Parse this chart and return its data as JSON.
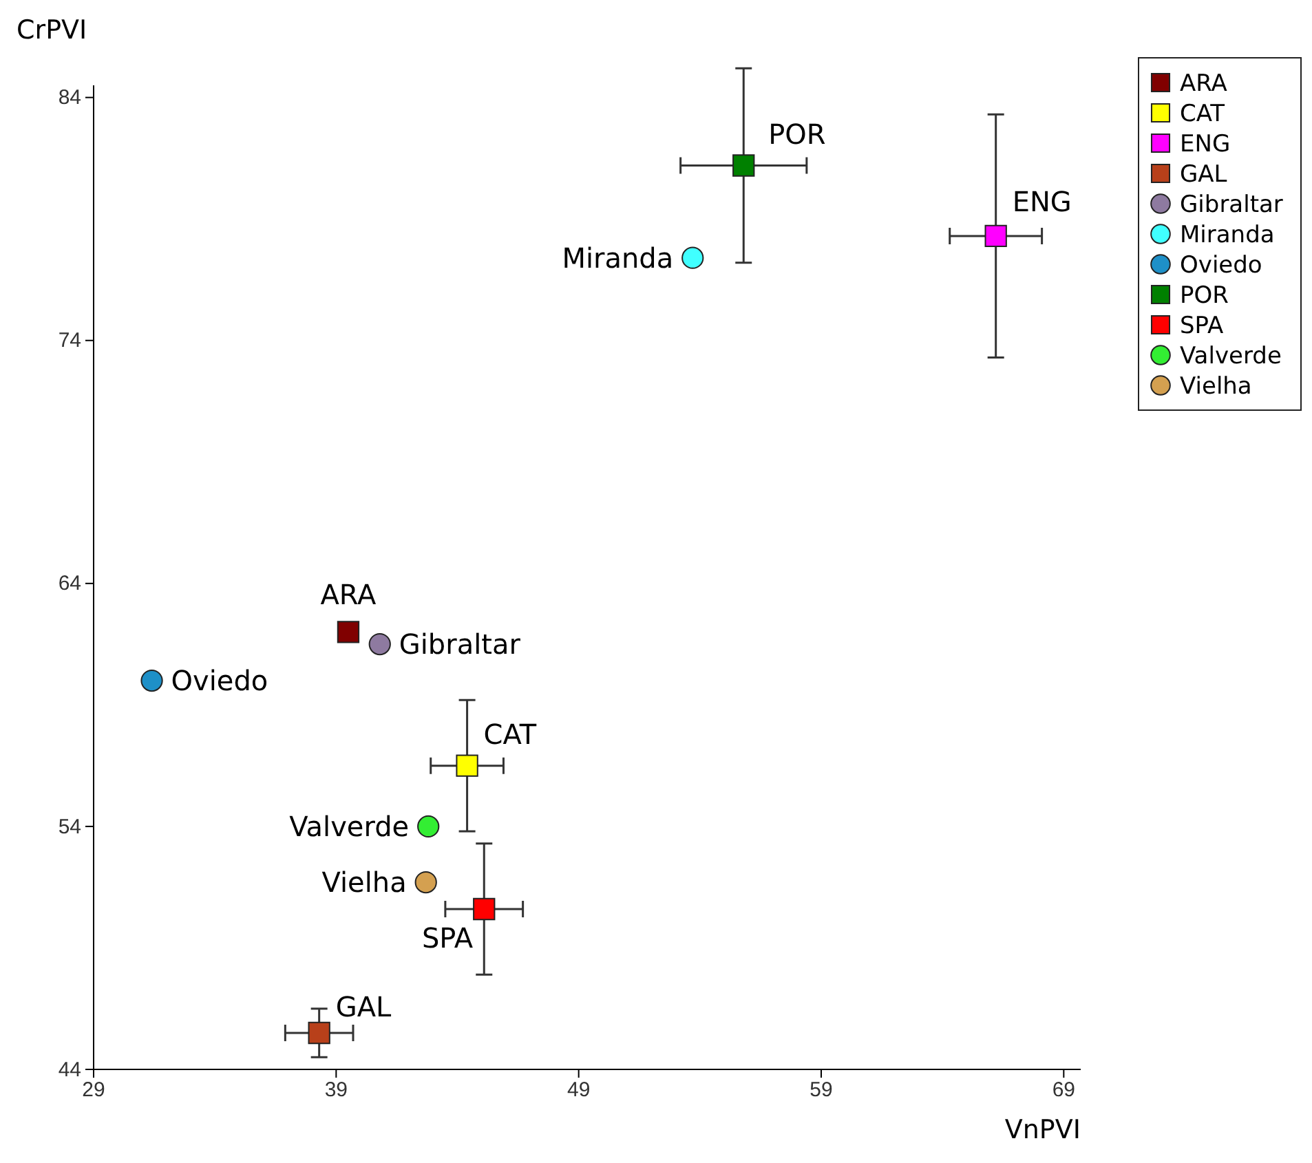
{
  "chart_data": {
    "type": "scatter",
    "xlabel": "VnPVI",
    "ylabel": "CrPVI",
    "xlim": [
      29,
      69.7
    ],
    "ylim": [
      44,
      84.5
    ],
    "xticks": [
      29,
      39,
      49,
      59,
      69
    ],
    "yticks": [
      44,
      54,
      64,
      74,
      84
    ],
    "grid": false,
    "legend": "top right",
    "series": [
      {
        "name": "ARA",
        "color": "#800000",
        "marker": "square",
        "x": [
          39.5
        ],
        "values": [
          62.0
        ]
      },
      {
        "name": "CAT",
        "color": "#ffff00",
        "marker": "square",
        "x": [
          44.4
        ],
        "values": [
          56.5
        ],
        "errors": [
          2.7
        ],
        "xerrors": [
          1.5
        ]
      },
      {
        "name": "ENG",
        "color": "#ff00ff",
        "marker": "square",
        "x": [
          66.2
        ],
        "values": [
          78.3
        ],
        "errors": [
          5.0
        ],
        "xerrors": [
          1.9
        ]
      },
      {
        "name": "GAL",
        "color": "#b8401a",
        "marker": "square",
        "x": [
          38.3
        ],
        "values": [
          45.5
        ],
        "errors": [
          1.0
        ],
        "xerrors": [
          1.4
        ]
      },
      {
        "name": "Gibraltar",
        "color": "#8e7aa0",
        "marker": "circle",
        "x": [
          40.8
        ],
        "values": [
          61.5
        ]
      },
      {
        "name": "Miranda",
        "color": "#40ffff",
        "marker": "circle",
        "x": [
          53.7
        ],
        "values": [
          77.4
        ]
      },
      {
        "name": "Oviedo",
        "color": "#1e90c8",
        "marker": "circle",
        "x": [
          31.4
        ],
        "values": [
          60.0
        ]
      },
      {
        "name": "POR",
        "color": "#008000",
        "marker": "square",
        "x": [
          55.8
        ],
        "values": [
          81.2
        ],
        "errors": [
          4.0
        ],
        "xerrors": [
          2.6
        ]
      },
      {
        "name": "SPA",
        "color": "#ff0000",
        "marker": "square",
        "x": [
          45.1
        ],
        "values": [
          50.6
        ],
        "errors": [
          2.7
        ],
        "xerrors": [
          1.6
        ]
      },
      {
        "name": "Valverde",
        "color": "#33ee33",
        "marker": "circle",
        "x": [
          42.8
        ],
        "values": [
          54.0
        ]
      },
      {
        "name": "Vielha",
        "color": "#d4a050",
        "marker": "circle",
        "x": [
          42.7
        ],
        "values": [
          51.7
        ]
      }
    ]
  }
}
